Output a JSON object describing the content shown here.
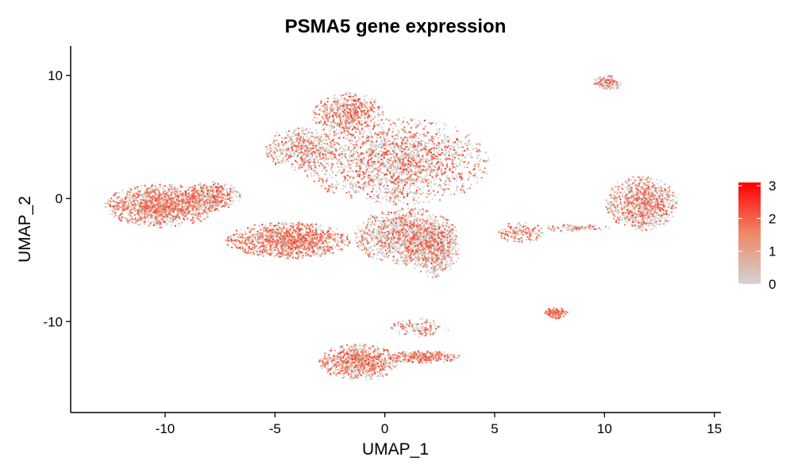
{
  "chart_data": {
    "type": "scatter",
    "title": "PSMA5 gene expression",
    "xlabel": "UMAP_1",
    "ylabel": "UMAP_2",
    "xlim": [
      -14.3,
      15.3
    ],
    "ylim": [
      -17.4,
      12.4
    ],
    "x_ticks": [
      -10,
      -5,
      0,
      5,
      10,
      15
    ],
    "x_tick_labels": [
      "-10",
      "-5",
      "0",
      "5",
      "10",
      "15"
    ],
    "y_ticks": [
      -10,
      0,
      10
    ],
    "y_tick_labels": [
      "-10",
      "0",
      "10"
    ],
    "grid": false,
    "colors": {
      "low": "#d3d3d3",
      "high": "#ff0000",
      "mid": "#ee8866"
    },
    "legend": {
      "position": "right",
      "scale": "continuous",
      "min": 0,
      "max": 3.1,
      "breaks": [
        0,
        1,
        2,
        3
      ],
      "labels": [
        "0",
        "1",
        "2",
        "3"
      ]
    },
    "clusters": [
      {
        "name": "left-blob",
        "center": [
          -10.2,
          -0.6
        ],
        "spread": [
          1.7,
          1.2
        ],
        "n": 1400,
        "expressed_fraction": 0.55
      },
      {
        "name": "left-tail",
        "center": [
          -7.9,
          0.2
        ],
        "spread": [
          0.9,
          0.8
        ],
        "n": 450,
        "expressed_fraction": 0.45
      },
      {
        "name": "central-large",
        "center": [
          0.5,
          3.0
        ],
        "spread": [
          2.9,
          2.4
        ],
        "n": 3200,
        "expressed_fraction": 0.4
      },
      {
        "name": "central-top",
        "center": [
          -1.7,
          6.9
        ],
        "spread": [
          1.1,
          1.2
        ],
        "n": 550,
        "expressed_fraction": 0.55
      },
      {
        "name": "central-left-arm",
        "center": [
          -3.8,
          4.0
        ],
        "spread": [
          1.1,
          1.2
        ],
        "n": 500,
        "expressed_fraction": 0.35
      },
      {
        "name": "mid-left-band",
        "center": [
          -4.4,
          -3.4
        ],
        "spread": [
          1.9,
          1.0
        ],
        "n": 1300,
        "expressed_fraction": 0.6
      },
      {
        "name": "central-lower",
        "center": [
          1.0,
          -3.1
        ],
        "spread": [
          1.6,
          1.6
        ],
        "n": 1300,
        "expressed_fraction": 0.35
      },
      {
        "name": "right-lower-lobe",
        "center": [
          2.2,
          -4.2
        ],
        "spread": [
          0.8,
          1.5
        ],
        "n": 650,
        "expressed_fraction": 0.3
      },
      {
        "name": "bottom-cluster",
        "center": [
          -1.2,
          -13.3
        ],
        "spread": [
          1.2,
          1.0
        ],
        "n": 850,
        "expressed_fraction": 0.5
      },
      {
        "name": "bottom-arm",
        "center": [
          1.8,
          -12.9
        ],
        "spread": [
          1.2,
          0.35
        ],
        "n": 300,
        "expressed_fraction": 0.6
      },
      {
        "name": "bottom-thin-arm",
        "center": [
          1.6,
          -10.5
        ],
        "spread": [
          0.9,
          0.5
        ],
        "n": 130,
        "expressed_fraction": 0.4
      },
      {
        "name": "right-cluster",
        "center": [
          11.7,
          -0.4
        ],
        "spread": [
          1.1,
          1.5
        ],
        "n": 1000,
        "expressed_fraction": 0.4
      },
      {
        "name": "top-right-small",
        "center": [
          10.1,
          9.4
        ],
        "spread": [
          0.45,
          0.4
        ],
        "n": 140,
        "expressed_fraction": 0.35
      },
      {
        "name": "mid-right-small",
        "center": [
          7.8,
          -9.3
        ],
        "spread": [
          0.35,
          0.3
        ],
        "n": 140,
        "expressed_fraction": 0.9
      },
      {
        "name": "mid-right-stream",
        "center": [
          6.2,
          -2.8
        ],
        "spread": [
          0.7,
          0.6
        ],
        "n": 160,
        "expressed_fraction": 0.5
      },
      {
        "name": "stream-to-right",
        "center": [
          8.6,
          -2.4
        ],
        "spread": [
          1.3,
          0.2
        ],
        "n": 90,
        "expressed_fraction": 0.4
      }
    ]
  }
}
